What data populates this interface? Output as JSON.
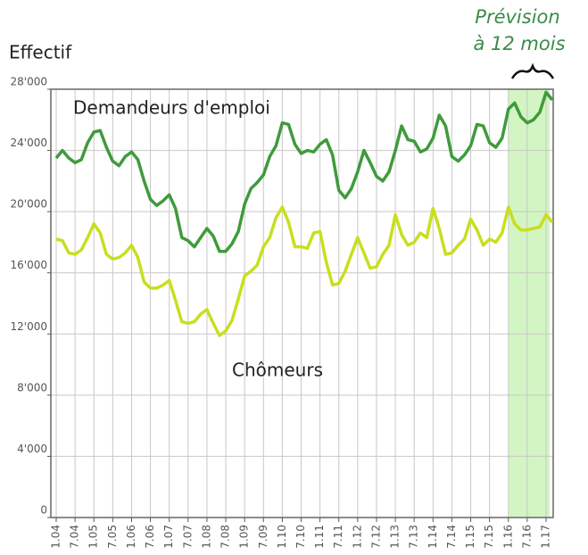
{
  "chart_data": {
    "type": "line",
    "ylabel": "Effectif",
    "categories": [
      "1.04",
      null,
      null,
      "7.04",
      null,
      null,
      "1.05",
      null,
      null,
      "7.05",
      null,
      null,
      "1.06",
      null,
      null,
      "7.06",
      null,
      null,
      "1.07",
      null,
      null,
      "7.07",
      null,
      null,
      "1.08",
      null,
      null,
      "7.08",
      null,
      null,
      "1.09",
      null,
      null,
      "7.09",
      null,
      null,
      "1.10",
      null,
      null,
      "7.10",
      null,
      null,
      "1.11",
      null,
      null,
      "7.11",
      null,
      null,
      "1.12",
      null,
      null,
      "7.12",
      null,
      null,
      "1.13",
      null,
      null,
      "7.13",
      null,
      null,
      "1.14",
      null,
      null,
      "7.14",
      null,
      null,
      "1.15",
      null,
      null,
      "7.15",
      null,
      null,
      "1.16",
      null,
      null,
      "7.16",
      null,
      null,
      "1.17",
      null
    ],
    "series": [
      {
        "name": "Demandeurs d'emploi",
        "color": "#3f9b3c",
        "values": [
          23500,
          24000,
          23500,
          23200,
          23400,
          24500,
          25200,
          25300,
          24200,
          23300,
          23000,
          23600,
          23900,
          23400,
          22000,
          20800,
          20400,
          20700,
          21100,
          20200,
          18300,
          18100,
          17700,
          18300,
          18900,
          18400,
          17400,
          17400,
          17900,
          18700,
          20500,
          21500,
          21900,
          22400,
          23600,
          24300,
          25800,
          25700,
          24400,
          23800,
          24000,
          23900,
          24400,
          24700,
          23700,
          21400,
          20900,
          21500,
          22600,
          24000,
          23200,
          22300,
          22000,
          22600,
          24000,
          25600,
          24700,
          24600,
          23900,
          24100,
          24800,
          26300,
          25600,
          23600,
          23300,
          23700,
          24300,
          25700,
          25600,
          24500,
          24200,
          24800,
          26700,
          27100,
          26200,
          25800,
          26000,
          26500,
          27800,
          27300
        ]
      },
      {
        "name": "Chômeurs",
        "color": "#c8df1e",
        "values": [
          18200,
          18100,
          17300,
          17200,
          17500,
          18300,
          19200,
          18600,
          17200,
          16900,
          17000,
          17300,
          17800,
          17000,
          15400,
          15000,
          15000,
          15200,
          15500,
          14200,
          12800,
          12700,
          12800,
          13300,
          13600,
          12700,
          11900,
          12200,
          12900,
          14300,
          15800,
          16100,
          16500,
          17700,
          18300,
          19600,
          20300,
          19300,
          17700,
          17700,
          17600,
          18600,
          18700,
          16700,
          15200,
          15300,
          16100,
          17200,
          18300,
          17300,
          16300,
          16400,
          17200,
          17800,
          19800,
          18500,
          17800,
          18000,
          18600,
          18300,
          20200,
          18900,
          17200,
          17300,
          17800,
          18200,
          19500,
          18800,
          17800,
          18200,
          18000,
          18600,
          20300,
          19200,
          18800,
          18800,
          18900,
          19000,
          19800,
          19300
        ]
      }
    ],
    "ylim": [
      0,
      28000
    ],
    "yticks": [
      0,
      {
        "value": 4000,
        "label": "4'000"
      },
      {
        "value": 8000,
        "label": "8'000"
      },
      {
        "value": 12000,
        "label": "12'000"
      },
      {
        "value": 16000,
        "label": "16'000"
      },
      {
        "value": 20000,
        "label": "20'000"
      },
      {
        "value": 24000,
        "label": "24'000"
      },
      {
        "value": 28000,
        "label": "28'000"
      }
    ],
    "grid": true,
    "forecast": {
      "label": [
        "Prévision",
        "à 12 mois"
      ],
      "start": "1.16",
      "color": "#d3f5c3"
    }
  }
}
